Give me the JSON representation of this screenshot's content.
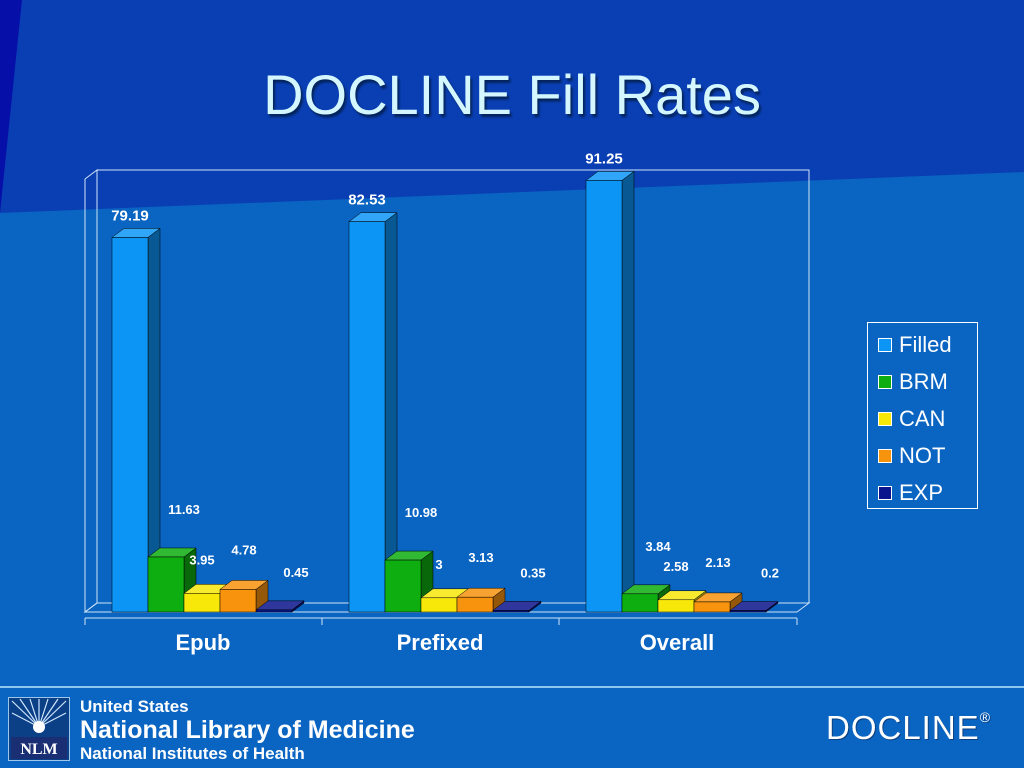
{
  "slide": {
    "title": "DOCLINE Fill Rates"
  },
  "chart_data": {
    "type": "bar",
    "categories": [
      "Epub",
      "Prefixed",
      "Overall"
    ],
    "series": [
      {
        "name": "Filled",
        "color": "#0d95f5",
        "values": [
          79.19,
          82.53,
          91.25
        ],
        "labels": [
          "79.19",
          "82.53",
          "91.25"
        ]
      },
      {
        "name": "BRM",
        "color": "#0ead10",
        "values": [
          11.63,
          10.98,
          3.84
        ],
        "labels": [
          "11.63",
          "10.98",
          "3.84"
        ]
      },
      {
        "name": "CAN",
        "color": "#f7e80a",
        "values": [
          3.95,
          3,
          2.58
        ],
        "labels": [
          "3.95",
          "3",
          "2.58"
        ]
      },
      {
        "name": "NOT",
        "color": "#f7930d",
        "values": [
          4.78,
          3.13,
          2.13
        ],
        "labels": [
          "4.78",
          "3.13",
          "2.13"
        ]
      },
      {
        "name": "EXP",
        "color": "#0a148c",
        "values": [
          0.45,
          0.35,
          0.2
        ],
        "labels": [
          "0.45",
          "0.35",
          "0.2"
        ]
      }
    ],
    "ylim": [
      0,
      100
    ],
    "legend": "right",
    "grid": false,
    "chart_style": "3d-clustered-column"
  },
  "footer": {
    "org_line1": "United States",
    "org_line2": "National Library of Medicine",
    "org_line3": "National Institutes of Health",
    "nlm_logo_text": "NLM",
    "product_logo": "DOCLINE",
    "registered_mark": "®"
  }
}
